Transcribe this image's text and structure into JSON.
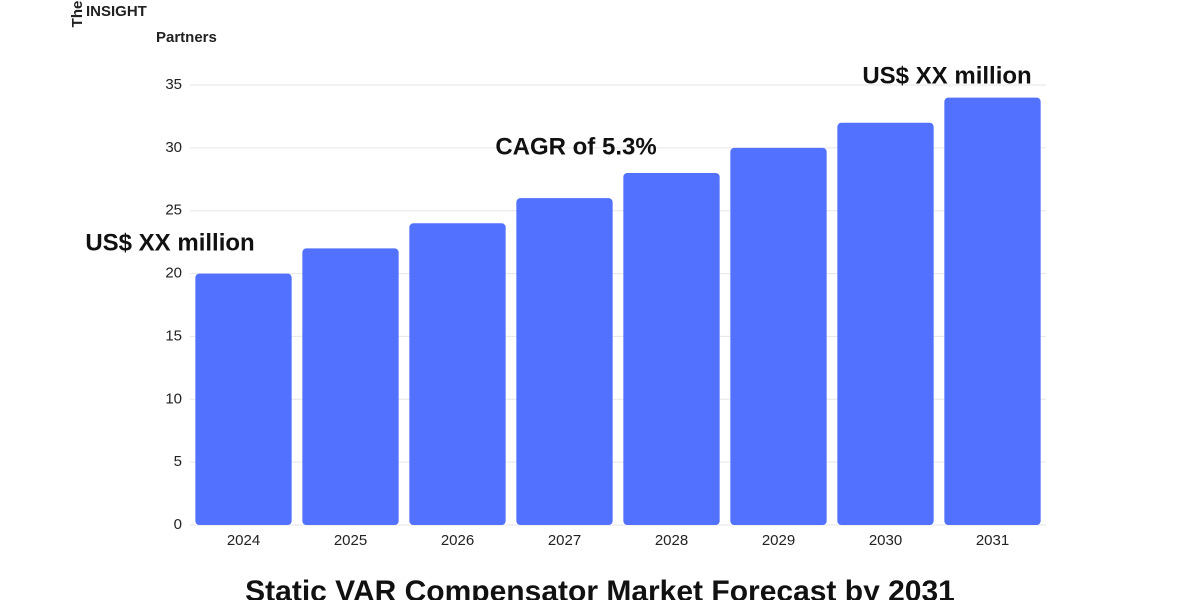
{
  "logo": {
    "prefix": "The",
    "name": "INSIGHT",
    "suffix": "Partners"
  },
  "chart_data": {
    "type": "bar",
    "title": "Static VAR Compensator Market Forecast by 2031",
    "categories": [
      "2024",
      "2025",
      "2026",
      "2027",
      "2028",
      "2029",
      "2030",
      "2031"
    ],
    "values": [
      20,
      22,
      24,
      26,
      28,
      30,
      32,
      34
    ],
    "color": "#5271ff",
    "ylim": [
      0,
      35
    ],
    "yticks": [
      0,
      5,
      10,
      15,
      20,
      25,
      30,
      35
    ],
    "grid": true,
    "annotations": [
      "US$ XX million",
      "CAGR of 5.3%",
      "US$ XX million"
    ]
  }
}
